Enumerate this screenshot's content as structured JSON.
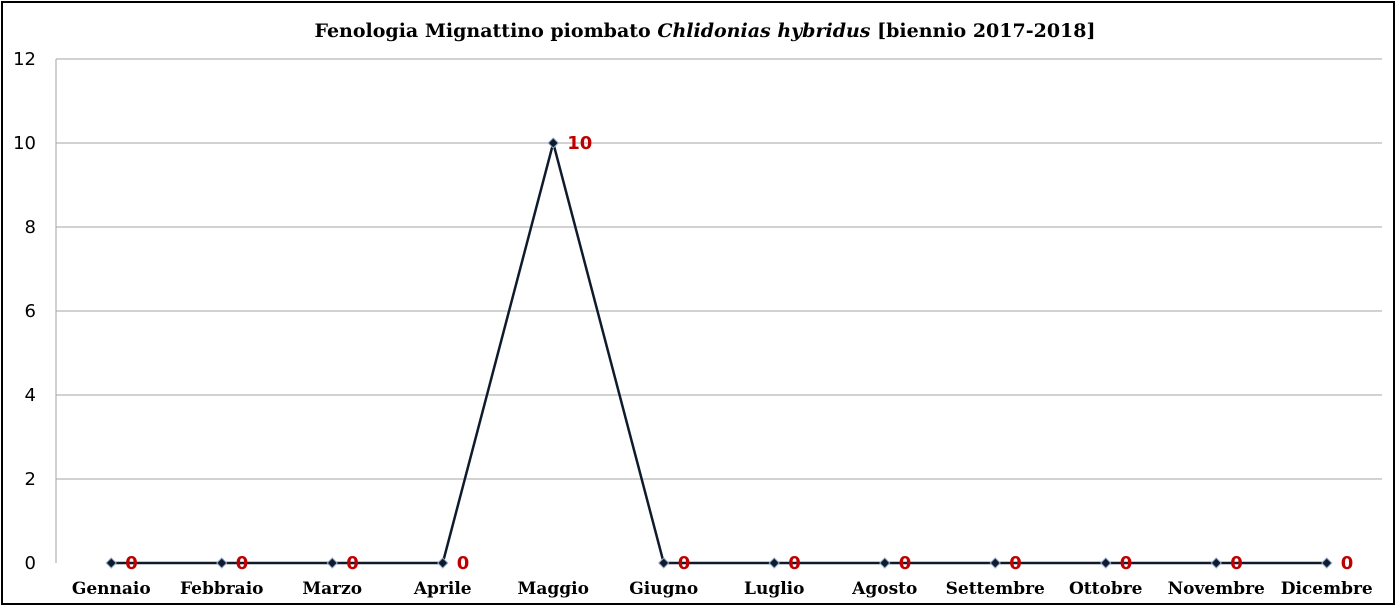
{
  "chart_data": {
    "type": "line",
    "title": {
      "prefix": "Fenologia Mignattino piombato ",
      "species": "Chlidonias hybridus",
      "suffix": " [biennio 2017-2018]"
    },
    "categories": [
      "Gennaio",
      "Febbraio",
      "Marzo",
      "Aprile",
      "Maggio",
      "Giugno",
      "Luglio",
      "Agosto",
      "Settembre",
      "Ottobre",
      "Novembre",
      "Dicembre"
    ],
    "series": [
      {
        "values": [
          0,
          0,
          0,
          0,
          10,
          0,
          0,
          0,
          0,
          0,
          0,
          0
        ]
      }
    ],
    "ylim": [
      0,
      12
    ],
    "yticks": [
      0,
      2,
      4,
      6,
      8,
      10,
      12
    ],
    "grid": true,
    "data_labels": true,
    "colors": {
      "line": "#0f1b2d",
      "marker": "#0f1b2d",
      "label": "#c00000",
      "grid": "#a6a6a6"
    }
  }
}
